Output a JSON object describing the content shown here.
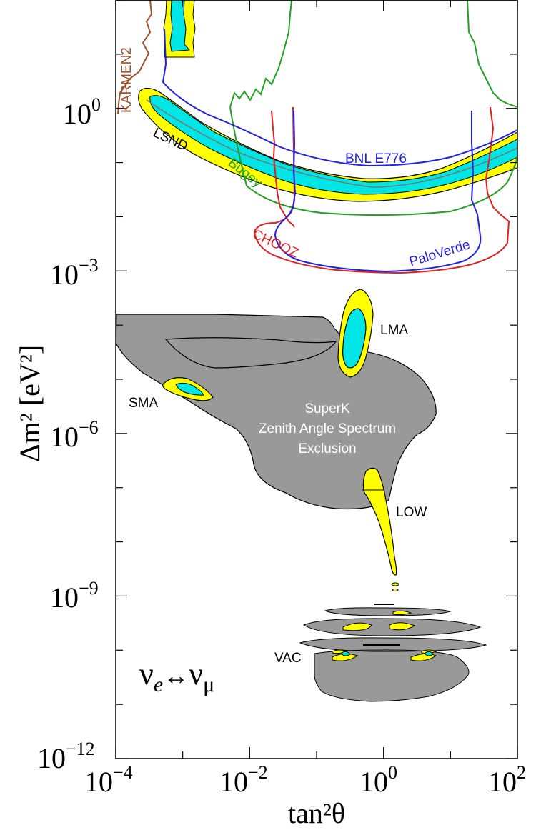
{
  "chart_data": {
    "type": "contour",
    "xlabel": "tan²θ",
    "ylabel": "Δm² [eV²]",
    "x_scale": "log",
    "y_scale": "log",
    "xlim": [
      0.0001,
      100
    ],
    "ylim": [
      1e-12,
      100
    ],
    "x_ticks": [
      {
        "value": 0.0001,
        "base": "10",
        "exp": "−4"
      },
      {
        "value": 0.01,
        "base": "10",
        "exp": "−2"
      },
      {
        "value": 1,
        "base": "10",
        "exp": "0"
      },
      {
        "value": 100,
        "base": "10",
        "exp": "2"
      }
    ],
    "y_ticks": [
      {
        "value": 1e-12,
        "base": "10",
        "exp": "−12"
      },
      {
        "value": 1e-09,
        "base": "10",
        "exp": "−9"
      },
      {
        "value": 1e-06,
        "base": "10",
        "exp": "−6"
      },
      {
        "value": 0.001,
        "base": "10",
        "exp": "−3"
      },
      {
        "value": 1,
        "base": "10",
        "exp": "0"
      }
    ],
    "channel_label": {
      "nu": "ν",
      "e": "e",
      "arrow": "↔",
      "mu": "μ"
    },
    "fill_colors": {
      "inner": "#00e5e5",
      "outer": "#ffff00",
      "exclusion": "#999999"
    },
    "curves": [
      {
        "name": "KARMEN2",
        "color": "#a0522d"
      },
      {
        "name": "LSND",
        "color": "#000000"
      },
      {
        "name": "Bugey",
        "color": "#22a022"
      },
      {
        "name": "BNL E776",
        "color": "#2020e0"
      },
      {
        "name": "CHOOZ",
        "color": "#e02020"
      },
      {
        "name": "PaloVerde",
        "color": "#2020e0"
      }
    ],
    "regions": [
      {
        "name": "LMA",
        "center": [
          0.4,
          3e-05
        ]
      },
      {
        "name": "SMA",
        "center": [
          0.0015,
          7e-06
        ]
      },
      {
        "name": "LOW",
        "center": [
          0.8,
          1e-07
        ]
      },
      {
        "name": "VAC",
        "center": [
          1.0,
          3e-10
        ]
      },
      {
        "name": "LSND",
        "center": [
          0.1,
          0.4
        ]
      }
    ],
    "exclusion_lines": [
      "SuperK",
      "Zenith Angle Spectrum",
      "Exclusion"
    ]
  }
}
